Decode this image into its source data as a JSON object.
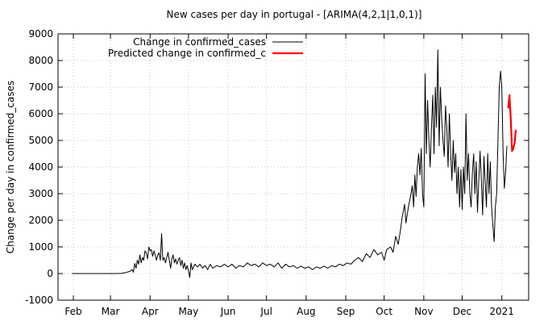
{
  "chart_data": {
    "type": "line",
    "title": "New cases per day in portugal -  [ARIMA(4,2,1|1,0,1)]",
    "xlabel": "",
    "ylabel": "Change per day in confirmed_cases",
    "ylim": [
      -1000,
      9000
    ],
    "yticks": [
      -1000,
      0,
      1000,
      2000,
      3000,
      4000,
      5000,
      6000,
      7000,
      8000,
      9000
    ],
    "xlim": [
      "2020-01-20",
      "2021-01-22"
    ],
    "xticks": [
      {
        "date": "2020-02-01",
        "label": "Feb"
      },
      {
        "date": "2020-03-01",
        "label": "Mar"
      },
      {
        "date": "2020-04-01",
        "label": "Apr"
      },
      {
        "date": "2020-05-01",
        "label": "May"
      },
      {
        "date": "2020-06-01",
        "label": "Jun"
      },
      {
        "date": "2020-07-01",
        "label": "Jul"
      },
      {
        "date": "2020-08-01",
        "label": "Aug"
      },
      {
        "date": "2020-09-01",
        "label": "Sep"
      },
      {
        "date": "2020-10-01",
        "label": "Oct"
      },
      {
        "date": "2020-11-01",
        "label": "Nov"
      },
      {
        "date": "2020-12-01",
        "label": "Dec"
      },
      {
        "date": "2021-01-01",
        "label": "2021"
      }
    ],
    "grid": true,
    "legend_position": "top-left",
    "series": [
      {
        "name": "Change in confirmed_cases",
        "color": "#000000",
        "points": [
          [
            "2020-01-31",
            0
          ],
          [
            "2020-02-15",
            0
          ],
          [
            "2020-03-01",
            0
          ],
          [
            "2020-03-05",
            0
          ],
          [
            "2020-03-10",
            10
          ],
          [
            "2020-03-13",
            40
          ],
          [
            "2020-03-16",
            80
          ],
          [
            "2020-03-18",
            150
          ],
          [
            "2020-03-19",
            50
          ],
          [
            "2020-03-20",
            380
          ],
          [
            "2020-03-21",
            200
          ],
          [
            "2020-03-22",
            500
          ],
          [
            "2020-03-23",
            350
          ],
          [
            "2020-03-24",
            700
          ],
          [
            "2020-03-25",
            400
          ],
          [
            "2020-03-26",
            600
          ],
          [
            "2020-03-27",
            500
          ],
          [
            "2020-03-28",
            850
          ],
          [
            "2020-03-29",
            780
          ],
          [
            "2020-03-30",
            550
          ],
          [
            "2020-03-31",
            1000
          ],
          [
            "2020-04-01",
            850
          ],
          [
            "2020-04-02",
            900
          ],
          [
            "2020-04-03",
            650
          ],
          [
            "2020-04-04",
            850
          ],
          [
            "2020-04-05",
            700
          ],
          [
            "2020-04-06",
            500
          ],
          [
            "2020-04-07",
            700
          ],
          [
            "2020-04-08",
            780
          ],
          [
            "2020-04-09",
            500
          ],
          [
            "2020-04-10",
            1500
          ],
          [
            "2020-04-11",
            500
          ],
          [
            "2020-04-12",
            600
          ],
          [
            "2020-04-13",
            400
          ],
          [
            "2020-04-14",
            600
          ],
          [
            "2020-04-15",
            800
          ],
          [
            "2020-04-16",
            500
          ],
          [
            "2020-04-17",
            200
          ],
          [
            "2020-04-18",
            550
          ],
          [
            "2020-04-19",
            700
          ],
          [
            "2020-04-20",
            400
          ],
          [
            "2020-04-21",
            550
          ],
          [
            "2020-04-22",
            350
          ],
          [
            "2020-04-23",
            500
          ],
          [
            "2020-04-24",
            600
          ],
          [
            "2020-04-25",
            300
          ],
          [
            "2020-04-26",
            500
          ],
          [
            "2020-04-27",
            200
          ],
          [
            "2020-04-28",
            400
          ],
          [
            "2020-04-29",
            150
          ],
          [
            "2020-04-30",
            300
          ],
          [
            "2020-05-01",
            100
          ],
          [
            "2020-05-02",
            -150
          ],
          [
            "2020-05-03",
            400
          ],
          [
            "2020-05-04",
            150
          ],
          [
            "2020-05-06",
            350
          ],
          [
            "2020-05-08",
            250
          ],
          [
            "2020-05-10",
            350
          ],
          [
            "2020-05-12",
            200
          ],
          [
            "2020-05-14",
            300
          ],
          [
            "2020-05-16",
            150
          ],
          [
            "2020-05-18",
            350
          ],
          [
            "2020-05-20",
            200
          ],
          [
            "2020-05-23",
            300
          ],
          [
            "2020-05-26",
            250
          ],
          [
            "2020-05-29",
            350
          ],
          [
            "2020-06-01",
            250
          ],
          [
            "2020-06-04",
            350
          ],
          [
            "2020-06-07",
            200
          ],
          [
            "2020-06-10",
            300
          ],
          [
            "2020-06-13",
            250
          ],
          [
            "2020-06-16",
            400
          ],
          [
            "2020-06-19",
            300
          ],
          [
            "2020-06-22",
            350
          ],
          [
            "2020-06-25",
            250
          ],
          [
            "2020-06-28",
            400
          ],
          [
            "2020-07-01",
            300
          ],
          [
            "2020-07-04",
            350
          ],
          [
            "2020-07-07",
            250
          ],
          [
            "2020-07-10",
            400
          ],
          [
            "2020-07-13",
            200
          ],
          [
            "2020-07-16",
            350
          ],
          [
            "2020-07-19",
            250
          ],
          [
            "2020-07-22",
            300
          ],
          [
            "2020-07-25",
            200
          ],
          [
            "2020-07-28",
            280
          ],
          [
            "2020-07-31",
            200
          ],
          [
            "2020-08-03",
            250
          ],
          [
            "2020-08-06",
            150
          ],
          [
            "2020-08-09",
            250
          ],
          [
            "2020-08-12",
            200
          ],
          [
            "2020-08-15",
            280
          ],
          [
            "2020-08-18",
            200
          ],
          [
            "2020-08-21",
            300
          ],
          [
            "2020-08-24",
            250
          ],
          [
            "2020-08-27",
            350
          ],
          [
            "2020-08-30",
            300
          ],
          [
            "2020-09-02",
            400
          ],
          [
            "2020-09-05",
            350
          ],
          [
            "2020-09-08",
            500
          ],
          [
            "2020-09-11",
            600
          ],
          [
            "2020-09-14",
            450
          ],
          [
            "2020-09-17",
            750
          ],
          [
            "2020-09-20",
            600
          ],
          [
            "2020-09-23",
            900
          ],
          [
            "2020-09-26",
            700
          ],
          [
            "2020-09-29",
            800
          ],
          [
            "2020-10-01",
            500
          ],
          [
            "2020-10-03",
            900
          ],
          [
            "2020-10-06",
            1000
          ],
          [
            "2020-10-08",
            800
          ],
          [
            "2020-10-10",
            1400
          ],
          [
            "2020-10-12",
            1100
          ],
          [
            "2020-10-14",
            1700
          ],
          [
            "2020-10-15",
            2100
          ],
          [
            "2020-10-17",
            2600
          ],
          [
            "2020-10-18",
            1900
          ],
          [
            "2020-10-20",
            2500
          ],
          [
            "2020-10-22",
            3000
          ],
          [
            "2020-10-23",
            3300
          ],
          [
            "2020-10-24",
            2500
          ],
          [
            "2020-10-25",
            3700
          ],
          [
            "2020-10-26",
            2900
          ],
          [
            "2020-10-27",
            4000
          ],
          [
            "2020-10-28",
            4500
          ],
          [
            "2020-10-29",
            3700
          ],
          [
            "2020-10-30",
            4700
          ],
          [
            "2020-10-31",
            3000
          ],
          [
            "2020-11-01",
            2500
          ],
          [
            "2020-11-02",
            7500
          ],
          [
            "2020-11-03",
            4500
          ],
          [
            "2020-11-04",
            6500
          ],
          [
            "2020-11-05",
            5000
          ],
          [
            "2020-11-06",
            4000
          ],
          [
            "2020-11-07",
            5500
          ],
          [
            "2020-11-08",
            6700
          ],
          [
            "2020-11-09",
            4500
          ],
          [
            "2020-11-10",
            7000
          ],
          [
            "2020-11-11",
            5500
          ],
          [
            "2020-11-12",
            8400
          ],
          [
            "2020-11-13",
            4800
          ],
          [
            "2020-11-14",
            7000
          ],
          [
            "2020-11-15",
            5800
          ],
          [
            "2020-11-16",
            5000
          ],
          [
            "2020-11-17",
            4400
          ],
          [
            "2020-11-18",
            6300
          ],
          [
            "2020-11-19",
            5500
          ],
          [
            "2020-11-20",
            4000
          ],
          [
            "2020-11-21",
            6000
          ],
          [
            "2020-11-22",
            4500
          ],
          [
            "2020-11-23",
            3500
          ],
          [
            "2020-11-24",
            5000
          ],
          [
            "2020-11-25",
            3800
          ],
          [
            "2020-11-26",
            4500
          ],
          [
            "2020-11-27",
            3000
          ],
          [
            "2020-11-28",
            4000
          ],
          [
            "2020-11-29",
            2500
          ],
          [
            "2020-11-30",
            3900
          ],
          [
            "2020-12-01",
            2400
          ],
          [
            "2020-12-02",
            4000
          ],
          [
            "2020-12-03",
            3000
          ],
          [
            "2020-12-04",
            6000
          ],
          [
            "2020-12-05",
            3500
          ],
          [
            "2020-12-06",
            4500
          ],
          [
            "2020-12-07",
            3000
          ],
          [
            "2020-12-08",
            2500
          ],
          [
            "2020-12-09",
            3800
          ],
          [
            "2020-12-10",
            4500
          ],
          [
            "2020-12-11",
            3000
          ],
          [
            "2020-12-12",
            4200
          ],
          [
            "2020-12-13",
            2300
          ],
          [
            "2020-12-14",
            3500
          ],
          [
            "2020-12-15",
            4600
          ],
          [
            "2020-12-16",
            3500
          ],
          [
            "2020-12-17",
            2200
          ],
          [
            "2020-12-18",
            4400
          ],
          [
            "2020-12-19",
            3500
          ],
          [
            "2020-12-20",
            2500
          ],
          [
            "2020-12-21",
            4500
          ],
          [
            "2020-12-22",
            3000
          ],
          [
            "2020-12-23",
            4200
          ],
          [
            "2020-12-24",
            2500
          ],
          [
            "2020-12-25",
            1800
          ],
          [
            "2020-12-26",
            1200
          ],
          [
            "2020-12-27",
            2500
          ],
          [
            "2020-12-28",
            3000
          ],
          [
            "2020-12-29",
            5000
          ],
          [
            "2020-12-30",
            7000
          ],
          [
            "2020-12-31",
            7600
          ],
          [
            "2021-01-01",
            7000
          ],
          [
            "2021-01-02",
            4500
          ],
          [
            "2021-01-03",
            3200
          ],
          [
            "2021-01-04",
            3800
          ],
          [
            "2021-01-05",
            4800
          ]
        ]
      },
      {
        "name": "Predicted change in confirmed_c",
        "color": "#ff0000",
        "points": [
          [
            "2021-01-06",
            6200
          ],
          [
            "2021-01-07",
            6700
          ],
          [
            "2021-01-08",
            5800
          ],
          [
            "2021-01-09",
            4600
          ],
          [
            "2021-01-10",
            4700
          ],
          [
            "2021-01-11",
            4900
          ],
          [
            "2021-01-12",
            5400
          ]
        ]
      }
    ]
  }
}
